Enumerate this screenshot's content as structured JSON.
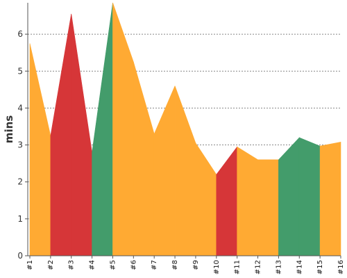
{
  "chart_data": {
    "type": "area",
    "title": "",
    "xlabel": "",
    "ylabel": "mins",
    "categories": [
      "#1",
      "#2",
      "#3",
      "#4",
      "#5",
      "#6",
      "#7",
      "#8",
      "#9",
      "#10",
      "#11",
      "#12",
      "#13",
      "#14",
      "#15",
      "#16"
    ],
    "values": [
      5.75,
      3.25,
      6.55,
      2.8,
      6.85,
      5.25,
      3.3,
      4.6,
      3.05,
      2.2,
      2.95,
      2.6,
      2.6,
      3.2,
      2.97,
      3.08
    ],
    "segment_colors": [
      "#FFAA33",
      "#D63638",
      "#D63638",
      "#439C6B",
      "#FFAA33",
      "#FFAA33",
      "#FFAA33",
      "#FFAA33",
      "#FFAA33",
      "#D63638",
      "#FFAA33",
      "#FFAA33",
      "#439C6B",
      "#439C6B",
      "#FFAA33",
      "#439C6B"
    ],
    "ylim": [
      0,
      6.85
    ],
    "yticks": [
      0,
      1,
      2,
      3,
      4,
      5,
      6
    ],
    "grid": true,
    "legend": "none"
  },
  "colors": {
    "orange": "#FFAA33",
    "red": "#D63638",
    "green": "#439C6B"
  }
}
